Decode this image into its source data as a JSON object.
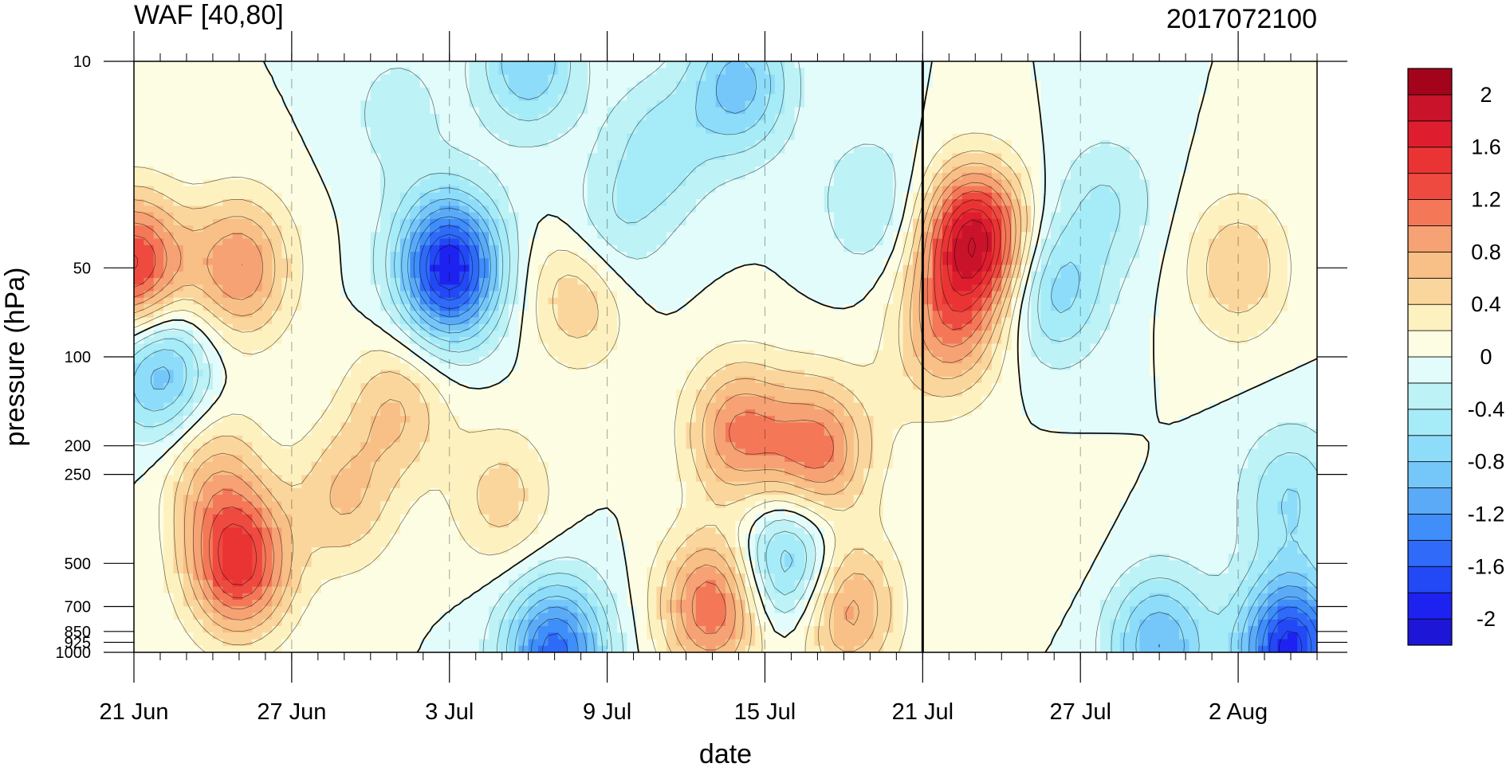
{
  "chart_data": {
    "type": "heatmap",
    "title": "WAF [40,80]",
    "subtitle": "2017072100",
    "xlabel": "date",
    "ylabel": "pressure (hPa)",
    "x_axis": {
      "start_date": "2017-06-21",
      "end_date": "2017-08-05",
      "major_ticks": [
        {
          "date": "2017-06-21",
          "label": "21 Jun"
        },
        {
          "date": "2017-06-27",
          "label": "27 Jun"
        },
        {
          "date": "2017-07-03",
          "label": "3 Jul"
        },
        {
          "date": "2017-07-09",
          "label": "9 Jul"
        },
        {
          "date": "2017-07-15",
          "label": "15 Jul"
        },
        {
          "date": "2017-07-21",
          "label": "21 Jul"
        },
        {
          "date": "2017-07-27",
          "label": "27 Jul"
        },
        {
          "date": "2017-08-02",
          "label": "2 Aug"
        }
      ],
      "vertical_marker_date": "2017-07-21"
    },
    "y_axis": {
      "scale": "log",
      "inverted": true,
      "range": [
        1000,
        10
      ],
      "ticks": [
        {
          "value": 10,
          "label": "10"
        },
        {
          "value": 50,
          "label": "50"
        },
        {
          "value": 100,
          "label": "100"
        },
        {
          "value": 200,
          "label": "200"
        },
        {
          "value": 250,
          "label": "250"
        },
        {
          "value": 500,
          "label": "500"
        },
        {
          "value": 700,
          "label": "700"
        },
        {
          "value": 850,
          "label": "850"
        },
        {
          "value": 925,
          "label": "925"
        },
        {
          "value": 1000,
          "label": "1000"
        }
      ]
    },
    "colorbar": {
      "levels": [
        -2.2,
        -2.0,
        -1.8,
        -1.6,
        -1.4,
        -1.2,
        -1.0,
        -0.8,
        -0.6,
        -0.4,
        -0.2,
        0,
        0.2,
        0.4,
        0.6,
        0.8,
        1.0,
        1.2,
        1.4,
        1.6,
        1.8,
        2.0,
        2.2
      ],
      "colors": [
        "#1e16d6",
        "#1e22f0",
        "#2348f5",
        "#2f6af8",
        "#3f8ef9",
        "#5aaaf8",
        "#75c7fa",
        "#8ddcfa",
        "#a6ebf8",
        "#bdf2f6",
        "#e2fbfb",
        "#fdfde3",
        "#fdf1c0",
        "#fbd69c",
        "#f8bf86",
        "#f6a274",
        "#f47858",
        "#ee4a40",
        "#ea3434",
        "#de1e2f",
        "#c9132a",
        "#a3041c"
      ],
      "tick_labels": [
        {
          "value": -2.0,
          "label": "-2"
        },
        {
          "value": -1.6,
          "label": "-1.6"
        },
        {
          "value": -1.2,
          "label": "-1.2"
        },
        {
          "value": -0.8,
          "label": "-0.8"
        },
        {
          "value": -0.4,
          "label": "-0.4"
        },
        {
          "value": 0,
          "label": "0"
        },
        {
          "value": 0.4,
          "label": "0.4"
        },
        {
          "value": 0.8,
          "label": "0.8"
        },
        {
          "value": 1.2,
          "label": "1.2"
        },
        {
          "value": 1.6,
          "label": "1.6"
        },
        {
          "value": 2.0,
          "label": "2"
        }
      ]
    },
    "features": [
      {
        "date": "2017-06-21",
        "p": 50,
        "value": 1.5
      },
      {
        "date": "2017-06-25",
        "p": 50,
        "value": 1.0
      },
      {
        "date": "2017-06-22",
        "p": 110,
        "value": -1.0
      },
      {
        "date": "2017-06-25",
        "p": 500,
        "value": 1.5
      },
      {
        "date": "2017-06-24",
        "p": 250,
        "value": 0.6
      },
      {
        "date": "2017-06-29",
        "p": 300,
        "value": 0.6
      },
      {
        "date": "2017-07-01",
        "p": 150,
        "value": 0.6
      },
      {
        "date": "2017-07-03",
        "p": 50,
        "value": -2.0
      },
      {
        "date": "2017-07-06",
        "p": 10,
        "value": -0.8
      },
      {
        "date": "2017-07-08",
        "p": 60,
        "value": 0.7
      },
      {
        "date": "2017-07-05",
        "p": 300,
        "value": 0.5
      },
      {
        "date": "2017-07-07",
        "p": 990,
        "value": -1.5
      },
      {
        "date": "2017-07-09",
        "p": 40,
        "value": -0.5
      },
      {
        "date": "2017-07-11",
        "p": 20,
        "value": -0.5
      },
      {
        "date": "2017-07-14",
        "p": 12,
        "value": -0.9
      },
      {
        "date": "2017-07-14",
        "p": 180,
        "value": 1.0
      },
      {
        "date": "2017-07-13",
        "p": 700,
        "value": 1.2
      },
      {
        "date": "2017-07-16",
        "p": 500,
        "value": -1.0
      },
      {
        "date": "2017-07-17",
        "p": 210,
        "value": 1.1
      },
      {
        "date": "2017-07-18",
        "p": 700,
        "value": 1.0
      },
      {
        "date": "2017-07-20",
        "p": 140,
        "value": 0.1
      },
      {
        "date": "2017-07-23",
        "p": 40,
        "value": 1.9
      },
      {
        "date": "2017-07-22",
        "p": 80,
        "value": 0.9
      },
      {
        "date": "2017-07-26",
        "p": 60,
        "value": -0.7
      },
      {
        "date": "2017-07-26",
        "p": 400,
        "value": 0.1
      },
      {
        "date": "2017-07-28",
        "p": 30,
        "value": -0.4
      },
      {
        "date": "2017-08-02",
        "p": 50,
        "value": 0.6
      },
      {
        "date": "2017-08-04",
        "p": 300,
        "value": -0.6
      },
      {
        "date": "2017-08-04",
        "p": 970,
        "value": -1.9
      },
      {
        "date": "2017-07-30",
        "p": 950,
        "value": -1.0
      },
      {
        "date": "2017-07-19",
        "p": 30,
        "value": -0.4
      },
      {
        "date": "2017-07-01",
        "p": 15,
        "value": -0.3
      }
    ]
  }
}
